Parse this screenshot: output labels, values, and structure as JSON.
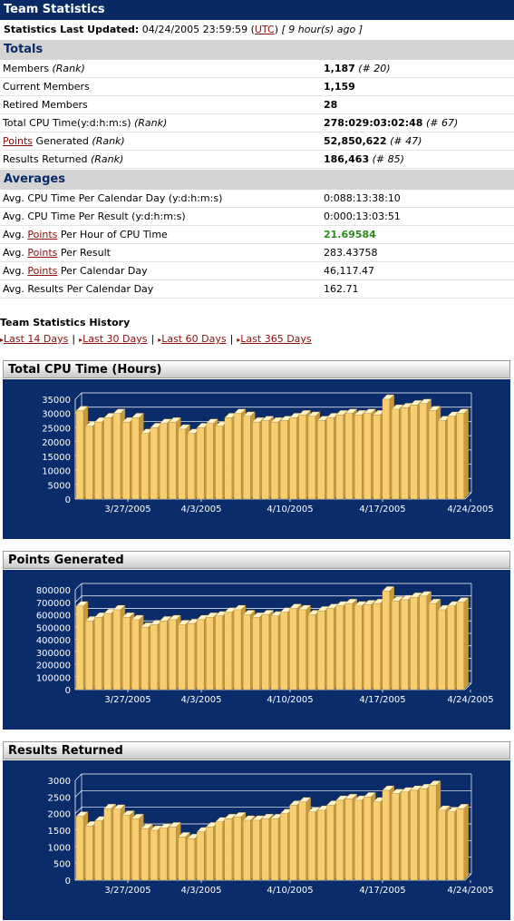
{
  "title": "Team Statistics",
  "updated": {
    "label": "Statistics Last Updated:",
    "datetime": "04/24/2005 23:59:59 (",
    "utc": "UTC",
    "after": ")",
    "ago": "[ 9 hour(s) ago ]"
  },
  "totals": {
    "heading": "Totals",
    "rows": [
      {
        "label": "Members",
        "rank": "(Rank)",
        "value": "1,187",
        "rankval": "(# 20)"
      },
      {
        "label": "Current Members",
        "value": "1,159"
      },
      {
        "label": "Retired Members",
        "value": "28"
      },
      {
        "label": "Total CPU Time(y:d:h:m:s)",
        "rank": "(Rank)",
        "value": "278:029:03:02:48",
        "rankval": "(# 67)"
      },
      {
        "link": "Points",
        "label": " Generated",
        "rank": "(Rank)",
        "value": "52,850,622",
        "rankval": "(# 47)"
      },
      {
        "label": "Results Returned",
        "rank": "(Rank)",
        "value": "186,463",
        "rankval": "(# 85)"
      }
    ]
  },
  "averages": {
    "heading": "Averages",
    "rows": [
      {
        "label": "Avg. CPU Time Per Calendar Day (y:d:h:m:s)",
        "value": "0:088:13:38:10"
      },
      {
        "label": "Avg. CPU Time Per Result (y:d:h:m:s)",
        "value": "0:000:13:03:51"
      },
      {
        "pre": "Avg. ",
        "link": "Points",
        "label": " Per Hour of CPU Time",
        "value": "21.69584"
      },
      {
        "pre": "Avg. ",
        "link": "Points",
        "label": " Per Result",
        "value": "283.43758"
      },
      {
        "pre": "Avg. ",
        "link": "Points",
        "label": " Per Calendar Day",
        "value": "46,117.47"
      },
      {
        "label": "Avg. Results Per Calendar Day",
        "value": "162.71"
      }
    ]
  },
  "history": {
    "title": "Team Statistics History",
    "links": [
      "Last 14 Days",
      "Last 30 Days",
      "Last 60 Days",
      "Last 365 Days"
    ]
  },
  "colors": {
    "navy": "#0a2a66",
    "chart_bg": "#0b2c6b",
    "bar": "#f7cf72",
    "link": "#8b1010",
    "green": "#2a8a1a"
  },
  "chart_data": [
    {
      "type": "bar",
      "title": "Total CPU Time (Hours)",
      "ylim": [
        0,
        35000
      ],
      "yticks": [
        "0",
        "5000",
        "10000",
        "15000",
        "20000",
        "25000",
        "30000",
        "35000"
      ],
      "xticks": [
        "3/27/2005",
        "4/3/2005",
        "4/10/2005",
        "4/17/2005",
        "4/24/2005"
      ],
      "values": [
        31000,
        25500,
        27000,
        28500,
        30000,
        27000,
        28500,
        23000,
        25000,
        26500,
        27000,
        24500,
        23000,
        25000,
        26500,
        25500,
        28500,
        30000,
        29000,
        27000,
        27500,
        27000,
        27500,
        28500,
        29500,
        29000,
        27500,
        28500,
        29500,
        30000,
        29500,
        30000,
        29500,
        35000,
        31500,
        32000,
        33000,
        33500,
        31000,
        27500,
        29000,
        30000
      ]
    },
    {
      "type": "bar",
      "title": "Points Generated",
      "ylim": [
        0,
        800000
      ],
      "yticks": [
        "0",
        "100000",
        "200000",
        "300000",
        "400000",
        "500000",
        "600000",
        "700000",
        "800000"
      ],
      "xticks": [
        "3/27/2005",
        "4/3/2005",
        "4/10/2005",
        "4/17/2005",
        "4/24/2005"
      ],
      "values": [
        670000,
        550000,
        580000,
        610000,
        640000,
        580000,
        560000,
        500000,
        520000,
        550000,
        560000,
        520000,
        530000,
        560000,
        580000,
        590000,
        620000,
        640000,
        600000,
        580000,
        600000,
        590000,
        620000,
        650000,
        640000,
        600000,
        630000,
        650000,
        670000,
        690000,
        670000,
        680000,
        690000,
        790000,
        710000,
        720000,
        740000,
        750000,
        690000,
        640000,
        670000,
        700000
      ]
    },
    {
      "type": "bar",
      "title": "Results Returned",
      "ylim": [
        0,
        3000
      ],
      "yticks": [
        "0",
        "500",
        "1000",
        "1500",
        "2000",
        "2500",
        "3000"
      ],
      "xticks": [
        "3/27/2005",
        "4/3/2005",
        "4/10/2005",
        "4/17/2005",
        "4/24/2005"
      ],
      "values": [
        1920,
        1630,
        1780,
        2150,
        2130,
        1950,
        1850,
        1550,
        1500,
        1560,
        1600,
        1300,
        1250,
        1450,
        1600,
        1750,
        1850,
        1900,
        1800,
        1800,
        1850,
        1850,
        2000,
        2250,
        2350,
        2050,
        2100,
        2250,
        2400,
        2450,
        2400,
        2500,
        2350,
        2700,
        2600,
        2650,
        2700,
        2750,
        2850,
        2100,
        2050,
        2150
      ]
    }
  ]
}
